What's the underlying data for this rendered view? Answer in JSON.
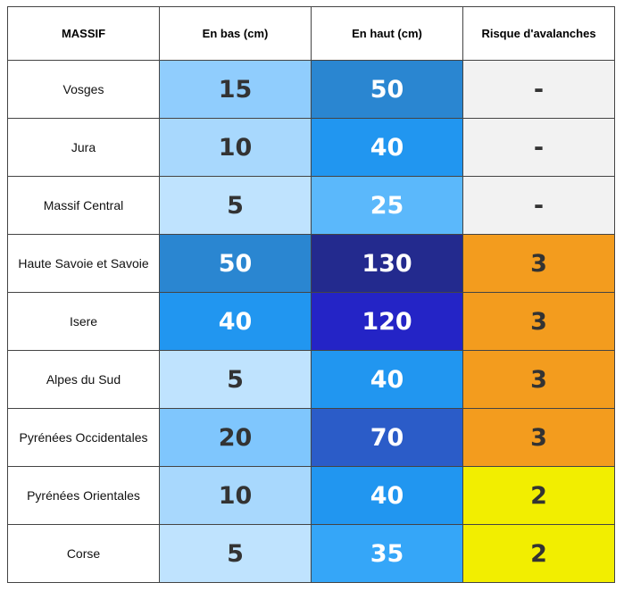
{
  "table": {
    "header": [
      "MASSIF",
      "En bas (cm)",
      "En haut (cm)",
      "Risque d'avalanches"
    ],
    "rows": [
      [
        "Vosges",
        15,
        50,
        "-"
      ],
      [
        "Jura",
        10,
        40,
        "-"
      ],
      [
        "Massif Central",
        5,
        25,
        "-"
      ],
      [
        "Haute Savoie et Savoie",
        50,
        130,
        3
      ],
      [
        "Isere",
        40,
        120,
        3
      ],
      [
        "Alpes du Sud",
        5,
        40,
        3
      ],
      [
        "Pyrénées Occidentales",
        20,
        70,
        3
      ],
      [
        "Pyrénées Orientales",
        10,
        40,
        2
      ],
      [
        "Corse",
        5,
        35,
        2
      ]
    ],
    "cell_colors": [
      [
        "#ffffff",
        "#90cdfd",
        "#2a86d1",
        "#f2f2f2"
      ],
      [
        "#ffffff",
        "#a8d8fd",
        "#2196f0",
        "#f2f2f2"
      ],
      [
        "#ffffff",
        "#bfe3fe",
        "#5bb8fb",
        "#f2f2f2"
      ],
      [
        "#ffffff",
        "#2a86d1",
        "#232a8e",
        "#f39c1e"
      ],
      [
        "#ffffff",
        "#2196f0",
        "#2424c6",
        "#f39c1e"
      ],
      [
        "#ffffff",
        "#bfe3fe",
        "#2196f0",
        "#f39c1e"
      ],
      [
        "#ffffff",
        "#7fc6fd",
        "#2b5cc8",
        "#f39c1e"
      ],
      [
        "#ffffff",
        "#a8d8fd",
        "#2196f0",
        "#f2ee00"
      ],
      [
        "#ffffff",
        "#bfe3fe",
        "#35a6f8",
        "#f2ee00"
      ]
    ]
  }
}
